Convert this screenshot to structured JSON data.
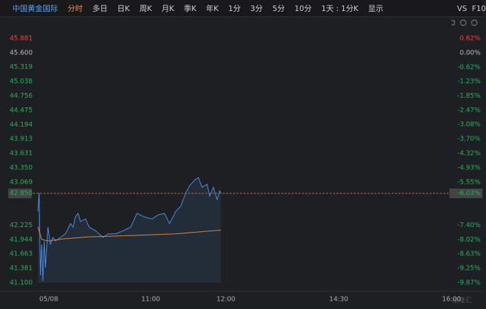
{
  "toolbar": {
    "stock": "中国黄金国际",
    "tabs": [
      "分时",
      "多日",
      "日K",
      "周K",
      "月K",
      "季K",
      "年K",
      "1分",
      "3分",
      "5分",
      "10分"
    ],
    "period": "1天 : 1分K",
    "display": "显示",
    "vs": "VS",
    "f10": "F10"
  },
  "watermark": "格隆汇",
  "chart_data": {
    "type": "line",
    "xlim": [
      0,
      330
    ],
    "xticks": [
      {
        "value": 0,
        "label": "05/08"
      },
      {
        "value": 90,
        "label": "11:00"
      },
      {
        "value": 150,
        "label": "12:00"
      },
      {
        "value": 240,
        "label": "14:30"
      },
      {
        "value": 330,
        "label": "16:00"
      }
    ],
    "ylim": [
      41.1,
      45.881
    ],
    "yticks": [
      {
        "value": 45.881,
        "label": "45.881"
      },
      {
        "value": 45.6,
        "label": "45.600"
      },
      {
        "value": 45.319,
        "label": "45.319"
      },
      {
        "value": 45.038,
        "label": "45.038"
      },
      {
        "value": 44.756,
        "label": "44.756"
      },
      {
        "value": 44.475,
        "label": "44.475"
      },
      {
        "value": 44.194,
        "label": "44.194"
      },
      {
        "value": 43.913,
        "label": "43.913"
      },
      {
        "value": 43.631,
        "label": "43.631"
      },
      {
        "value": 43.35,
        "label": "43.350"
      },
      {
        "value": 43.069,
        "label": "43.069"
      },
      {
        "value": 42.225,
        "label": "42.225"
      },
      {
        "value": 41.944,
        "label": "41.944"
      },
      {
        "value": 41.663,
        "label": "41.663"
      },
      {
        "value": 41.381,
        "label": "41.381"
      },
      {
        "value": 41.1,
        "label": "41.100"
      }
    ],
    "y2lim": [
      -9.87,
      0.62
    ],
    "y2ticks": [
      {
        "value": 0.62,
        "label": "0.62%"
      },
      {
        "value": 0,
        "label": "0.00%"
      },
      {
        "value": -0.62,
        "label": "-0.62%"
      },
      {
        "value": -1.23,
        "label": "-1.23%"
      },
      {
        "value": -1.85,
        "label": "-1.85%"
      },
      {
        "value": -2.47,
        "label": "-2.47%"
      },
      {
        "value": -3.08,
        "label": "-3.08%"
      },
      {
        "value": -3.7,
        "label": "-3.70%"
      },
      {
        "value": -4.32,
        "label": "-4.32%"
      },
      {
        "value": -4.93,
        "label": "-4.93%"
      },
      {
        "value": -5.55,
        "label": "-5.55%"
      },
      {
        "value": -7.4,
        "label": "-7.40%"
      },
      {
        "value": -8.02,
        "label": "-8.02%"
      },
      {
        "value": -8.63,
        "label": "-8.63%"
      },
      {
        "value": -9.25,
        "label": "-9.25%"
      },
      {
        "value": -9.87,
        "label": "-9.87%"
      }
    ],
    "last_price": {
      "value": 42.85,
      "label": "42.850"
    },
    "last_change": {
      "value": -6.03,
      "label": "-6.03%"
    },
    "up_color": "#e8463a",
    "down_color": "#1fb35b",
    "flat_color": "#b8b8b8",
    "series": [
      {
        "color": "#4d8fe8",
        "fill": true,
        "x": [
          0,
          1,
          2,
          3,
          4,
          5,
          6,
          7,
          8,
          10,
          12,
          14,
          18,
          22,
          26,
          28,
          30,
          32,
          34,
          38,
          41,
          46,
          52,
          56,
          62,
          68,
          74,
          79,
          85,
          91,
          96,
          101,
          105,
          110,
          114,
          118,
          121,
          125,
          128,
          131,
          135,
          137,
          140,
          143,
          145,
          146
        ],
        "values": [
          42.5,
          42.86,
          41.25,
          41.85,
          41.14,
          41.92,
          41.4,
          41.79,
          42.19,
          41.85,
          41.99,
          41.92,
          41.99,
          42.06,
          42.26,
          42.19,
          42.39,
          42.46,
          42.3,
          42.35,
          42.19,
          42.12,
          41.99,
          42.06,
          42.06,
          42.12,
          42.19,
          42.46,
          42.39,
          42.35,
          42.43,
          42.46,
          42.26,
          42.5,
          42.6,
          42.86,
          43.0,
          43.11,
          43.16,
          42.97,
          43.03,
          42.8,
          42.97,
          42.73,
          42.9,
          42.86
        ]
      },
      {
        "color": "#e0863a",
        "fill": false,
        "x": [
          0,
          3,
          8,
          20,
          40,
          80,
          110,
          140,
          146
        ],
        "values": [
          42.2,
          41.95,
          41.92,
          41.96,
          42.0,
          42.03,
          42.06,
          42.12,
          42.13
        ]
      }
    ]
  }
}
